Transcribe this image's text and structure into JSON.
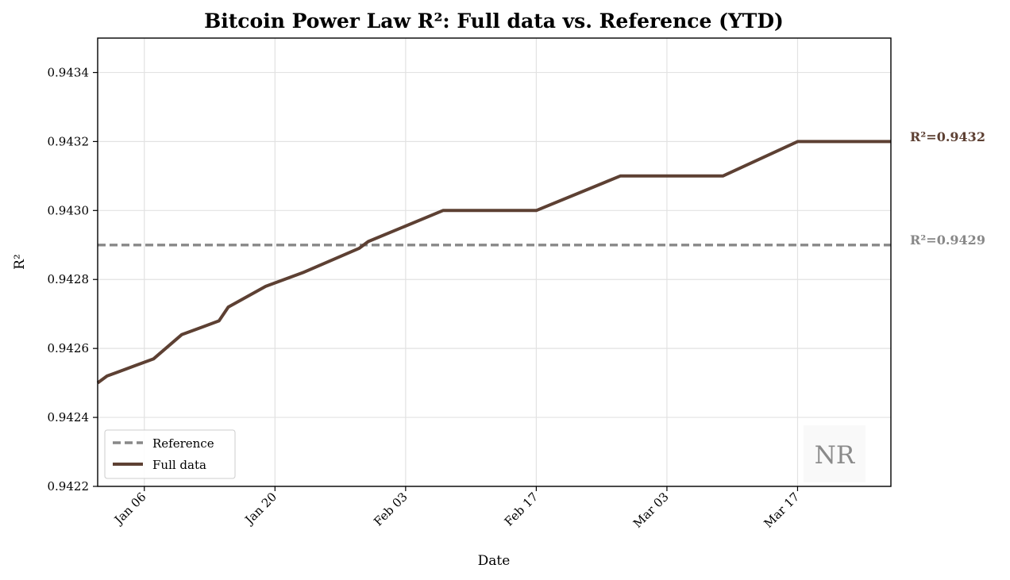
{
  "chart_data": {
    "type": "line",
    "title": "Bitcoin Power Law R²: Full data vs. Reference (YTD)",
    "xlabel": "Date",
    "ylabel": "R²",
    "ylim": [
      0.9422,
      0.9435
    ],
    "yticks": [
      0.9422,
      0.9424,
      0.9426,
      0.9428,
      0.943,
      0.9432,
      0.9434
    ],
    "ytick_labels": [
      "0.9422",
      "0.9424",
      "0.9426",
      "0.9428",
      "0.9430",
      "0.9432",
      "0.9434"
    ],
    "xlim_day": [
      1,
      86
    ],
    "xticks": [
      {
        "day": 6,
        "label": "Jan 06"
      },
      {
        "day": 20,
        "label": "Jan 20"
      },
      {
        "day": 34,
        "label": "Feb 03"
      },
      {
        "day": 48,
        "label": "Feb 17"
      },
      {
        "day": 62,
        "label": "Mar 03"
      },
      {
        "day": 76,
        "label": "Mar 17"
      }
    ],
    "grid": true,
    "legend_position": "lower-left",
    "watermark": "NR",
    "series": [
      {
        "name": "Reference",
        "style": "dashed",
        "color": "#888888",
        "end_label": "R²=0.9429",
        "x_day": [
          1,
          86
        ],
        "values": [
          0.9429,
          0.9429
        ]
      },
      {
        "name": "Full data",
        "style": "solid",
        "color": "#5d4033",
        "end_label": "R²=0.9432",
        "x_day": [
          1,
          2,
          3,
          4,
          5,
          7,
          10,
          14,
          15,
          19,
          23,
          29,
          30,
          38,
          48,
          57,
          68,
          76,
          86
        ],
        "values": [
          0.9425,
          0.94252,
          0.94253,
          0.94254,
          0.94255,
          0.94257,
          0.94264,
          0.94268,
          0.94272,
          0.94278,
          0.94282,
          0.94289,
          0.94291,
          0.943,
          0.943,
          0.9431,
          0.9431,
          0.9432,
          0.9432
        ]
      }
    ]
  }
}
